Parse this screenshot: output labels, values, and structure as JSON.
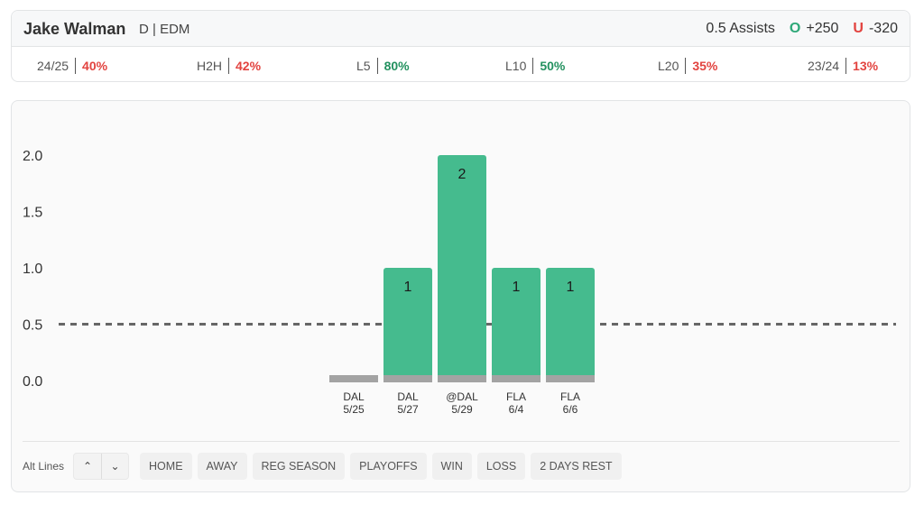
{
  "player": {
    "name": "Jake Walman",
    "meta": "D | EDM",
    "market": "0.5 Assists",
    "over_letter": "O",
    "over_odds": "+250",
    "under_letter": "U",
    "under_odds": "-320"
  },
  "stats": [
    {
      "label": "24/25",
      "value": "40%",
      "tone": "red"
    },
    {
      "label": "H2H",
      "value": "42%",
      "tone": "red"
    },
    {
      "label": "L5",
      "value": "80%",
      "tone": "green"
    },
    {
      "label": "L10",
      "value": "50%",
      "tone": "green"
    },
    {
      "label": "L20",
      "value": "35%",
      "tone": "red"
    },
    {
      "label": "23/24",
      "value": "13%",
      "tone": "red"
    }
  ],
  "colors": {
    "hit": "#45bb8e",
    "base": "#a3a3a3",
    "line": "#666666"
  },
  "chart_data": {
    "type": "bar",
    "categories": [
      "DAL\n5/25",
      "DAL\n5/27",
      "@DAL\n5/29",
      "FLA\n6/4",
      "FLA\n6/6"
    ],
    "values": [
      0,
      1,
      2,
      1,
      1
    ],
    "data_labels": [
      "",
      "1",
      "2",
      "1",
      "1"
    ],
    "yticks": [
      "0.0",
      "0.5",
      "1.0",
      "1.5",
      "2.0"
    ],
    "ylim": [
      0,
      2
    ],
    "threshold": 0.5,
    "legend": "none"
  },
  "filters": {
    "alt_label": "Alt Lines",
    "up_icon": "chevron-up-icon",
    "down_icon": "chevron-down-icon",
    "chips": [
      "HOME",
      "AWAY",
      "REG SEASON",
      "PLAYOFFS",
      "WIN",
      "LOSS",
      "2 DAYS REST"
    ]
  }
}
